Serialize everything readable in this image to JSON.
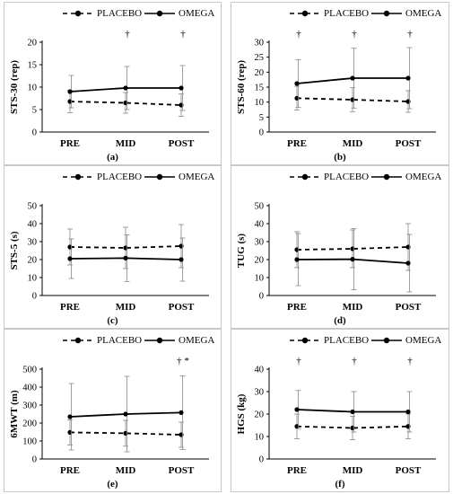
{
  "legend": {
    "placebo": "PLACEBO",
    "omega": "OMEGA"
  },
  "chart_data": [
    {
      "id": "a",
      "label": "(a)",
      "type": "line",
      "ylabel": "STS-30 (rep)",
      "ylim": [
        0,
        20
      ],
      "yticks": [
        0,
        5,
        10,
        15,
        20
      ],
      "categories": [
        "PRE",
        "MID",
        "POST"
      ],
      "series": [
        {
          "name": "PLACEBO",
          "style": "dashed",
          "values": [
            6.8,
            6.5,
            6.0
          ],
          "err": [
            2.5,
            2.3,
            2.5
          ]
        },
        {
          "name": "OMEGA",
          "style": "solid",
          "values": [
            9.0,
            9.8,
            9.8
          ],
          "err": [
            3.6,
            4.8,
            5.0
          ]
        }
      ],
      "annotations": [
        "",
        "†",
        "†"
      ]
    },
    {
      "id": "b",
      "label": "(b)",
      "type": "line",
      "ylabel": "STS-60 (rep)",
      "ylim": [
        0,
        30
      ],
      "yticks": [
        0,
        5,
        10,
        15,
        20,
        25,
        30
      ],
      "categories": [
        "PRE",
        "MID",
        "POST"
      ],
      "series": [
        {
          "name": "PLACEBO",
          "style": "dashed",
          "values": [
            11.3,
            10.8,
            10.2
          ],
          "err": [
            4.0,
            4.0,
            3.6
          ]
        },
        {
          "name": "OMEGA",
          "style": "solid",
          "values": [
            16.2,
            18.0,
            18.0
          ],
          "err": [
            8.0,
            10.0,
            10.2
          ]
        }
      ],
      "annotations": [
        "†",
        "†",
        "†"
      ]
    },
    {
      "id": "c",
      "label": "(c)",
      "type": "line",
      "ylabel": "STS-5 (s)",
      "ylim": [
        0,
        50
      ],
      "yticks": [
        0,
        10,
        20,
        30,
        40,
        50
      ],
      "categories": [
        "PRE",
        "MID",
        "POST"
      ],
      "series": [
        {
          "name": "PLACEBO",
          "style": "dashed",
          "values": [
            27.0,
            26.5,
            27.5
          ],
          "err": [
            10.0,
            11.5,
            12.0
          ]
        },
        {
          "name": "OMEGA",
          "style": "solid",
          "values": [
            20.5,
            20.8,
            20.0
          ],
          "err": [
            11.0,
            13.0,
            12.0
          ]
        }
      ],
      "annotations": [
        "",
        "",
        ""
      ]
    },
    {
      "id": "d",
      "label": "(d)",
      "type": "line",
      "ylabel": "TUG (s)",
      "ylim": [
        0,
        50
      ],
      "yticks": [
        0,
        10,
        20,
        30,
        40,
        50
      ],
      "categories": [
        "PRE",
        "MID",
        "POST"
      ],
      "series": [
        {
          "name": "PLACEBO",
          "style": "dashed",
          "values": [
            25.5,
            26.0,
            27.0
          ],
          "err": [
            10.0,
            10.5,
            13.0
          ]
        },
        {
          "name": "OMEGA",
          "style": "solid",
          "values": [
            20.0,
            20.2,
            18.0
          ],
          "err": [
            14.5,
            17.0,
            16.0
          ]
        }
      ],
      "annotations": [
        "",
        "",
        ""
      ]
    },
    {
      "id": "e",
      "label": "(e)",
      "type": "line",
      "ylabel": "6MWT (m)",
      "ylim": [
        0,
        500
      ],
      "yticks": [
        0,
        100,
        200,
        300,
        400,
        500
      ],
      "categories": [
        "PRE",
        "MID",
        "POST"
      ],
      "series": [
        {
          "name": "PLACEBO",
          "style": "dashed",
          "values": [
            148,
            143,
            135
          ],
          "err": [
            70,
            72,
            70
          ]
        },
        {
          "name": "OMEGA",
          "style": "solid",
          "values": [
            235,
            250,
            258
          ],
          "err": [
            185,
            210,
            205
          ]
        }
      ],
      "annotations": [
        "",
        "",
        "† *"
      ]
    },
    {
      "id": "f",
      "label": "(f)",
      "type": "line",
      "ylabel": "HGS (kg)",
      "ylim": [
        0,
        40
      ],
      "yticks": [
        0,
        10,
        20,
        30,
        40
      ],
      "categories": [
        "PRE",
        "MID",
        "POST"
      ],
      "series": [
        {
          "name": "PLACEBO",
          "style": "dashed",
          "values": [
            14.5,
            13.8,
            14.5
          ],
          "err": [
            5.5,
            5.2,
            5.5
          ]
        },
        {
          "name": "OMEGA",
          "style": "solid",
          "values": [
            22.0,
            21.0,
            21.0
          ],
          "err": [
            8.5,
            9.0,
            9.0
          ]
        }
      ],
      "annotations": [
        "†",
        "†",
        "†"
      ]
    }
  ]
}
